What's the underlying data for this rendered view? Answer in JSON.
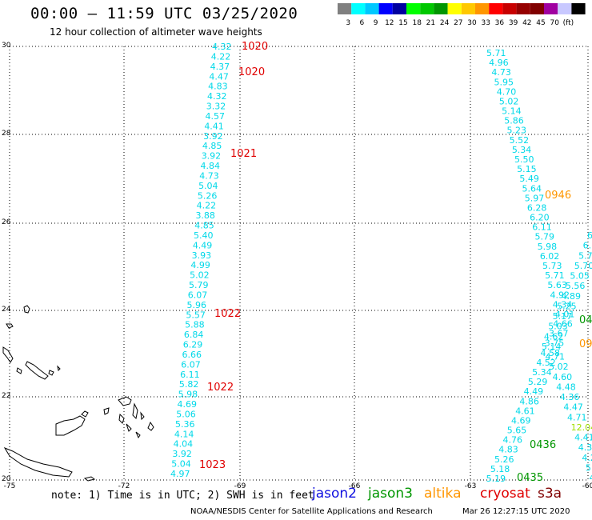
{
  "header": {
    "title": "00:00 – 11:59 UTC 03/25/2020",
    "subtitle": "12 hour collection of altimeter wave heights"
  },
  "legend": {
    "colors": [
      "#808080",
      "#00ffff",
      "#00c8ff",
      "#0000ff",
      "#0000a0",
      "#00ff00",
      "#00c800",
      "#009600",
      "#ffff00",
      "#ffc800",
      "#ff9600",
      "#ff0000",
      "#c80000",
      "#960000",
      "#800000",
      "#a000a0",
      "#c8c8ff",
      "#000000"
    ],
    "labels": [
      "3",
      "6",
      "9",
      "12",
      "15",
      "18",
      "21",
      "24",
      "27",
      "30",
      "33",
      "36",
      "39",
      "42",
      "45",
      "70",
      "(ft)"
    ]
  },
  "axes": {
    "lat_ticks": [
      "30",
      "28",
      "26",
      "24",
      "22",
      "20"
    ],
    "lon_ticks": [
      "-75",
      "-72",
      "-69",
      "-66",
      "-63",
      "-60"
    ]
  },
  "tracks": {
    "west_values": [
      "4.32",
      "4.22",
      "4.37",
      "4.47",
      "4.83",
      "4.32",
      "3.32",
      "4.57",
      "4.41",
      "3.92",
      "4.85",
      "3.92",
      "4.84",
      "4.73",
      "5.04",
      "5.26",
      "4.22",
      "3.88",
      "4.85",
      "5.40",
      "4.49",
      "3.93",
      "4.99",
      "5.02",
      "5.79",
      "6.07",
      "5.96",
      "5.57",
      "5.88",
      "6.84",
      "6.29",
      "6.66",
      "6.07",
      "6.11",
      "5.82",
      "5.98",
      "4.69",
      "5.06",
      "5.36",
      "4.14",
      "4.04",
      "3.92",
      "5.04",
      "4.97"
    ],
    "west_times": [
      "1020",
      "1020",
      "1021",
      "1022",
      "1022",
      "1023"
    ],
    "east_values": [
      "5.71",
      "4.96",
      "4.73",
      "5.95",
      "4.70",
      "5.02",
      "5.14",
      "5.86",
      "5.23",
      "5.52",
      "5.34",
      "5.50",
      "5.15",
      "5.49",
      "5.64",
      "5.97",
      "6.28",
      "6.20",
      "6.11",
      "5.79",
      "5.98",
      "6.02",
      "5.73",
      "5.71",
      "5.63",
      "4.92",
      "4.34",
      "4.01",
      "4.66",
      "3.67",
      "3.75",
      "4.58",
      "4.52",
      "5.34",
      "5.29",
      "4.49",
      "4.86",
      "4.61",
      "4.69",
      "5.65",
      "4.76",
      "4.83",
      "5.26",
      "5.18",
      "5.19"
    ],
    "east_time_a": "0946",
    "east_time_b": "0436",
    "east_time_c": "0435",
    "far_values": [
      "6.",
      "6.",
      "5.7",
      "5.70",
      "5.05",
      "5.56",
      "4.89",
      "5.25",
      "5.17",
      "5.03",
      "4.62",
      "5.14",
      "4.71",
      "5.02",
      "4.60",
      "4.48",
      "4.36",
      "4.47",
      "4.71",
      "12.04",
      "4.41",
      "4.32",
      "4.29",
      "5.0",
      "4.9"
    ],
    "far_time_a": "04",
    "far_time_b": "09"
  },
  "footer": {
    "note": "note: 1) Time is in UTC; 2) SWH is in feet",
    "satellites": {
      "jason2": "jason2",
      "jason3": "jason3",
      "altika": "altika",
      "cryosat": "cryosat",
      "s3a": "s3a"
    },
    "credit": "NOAA/NESDIS Center for Satellite Applications and Research",
    "timestamp": "Mar 26 12:27:15 UTC 2020"
  }
}
